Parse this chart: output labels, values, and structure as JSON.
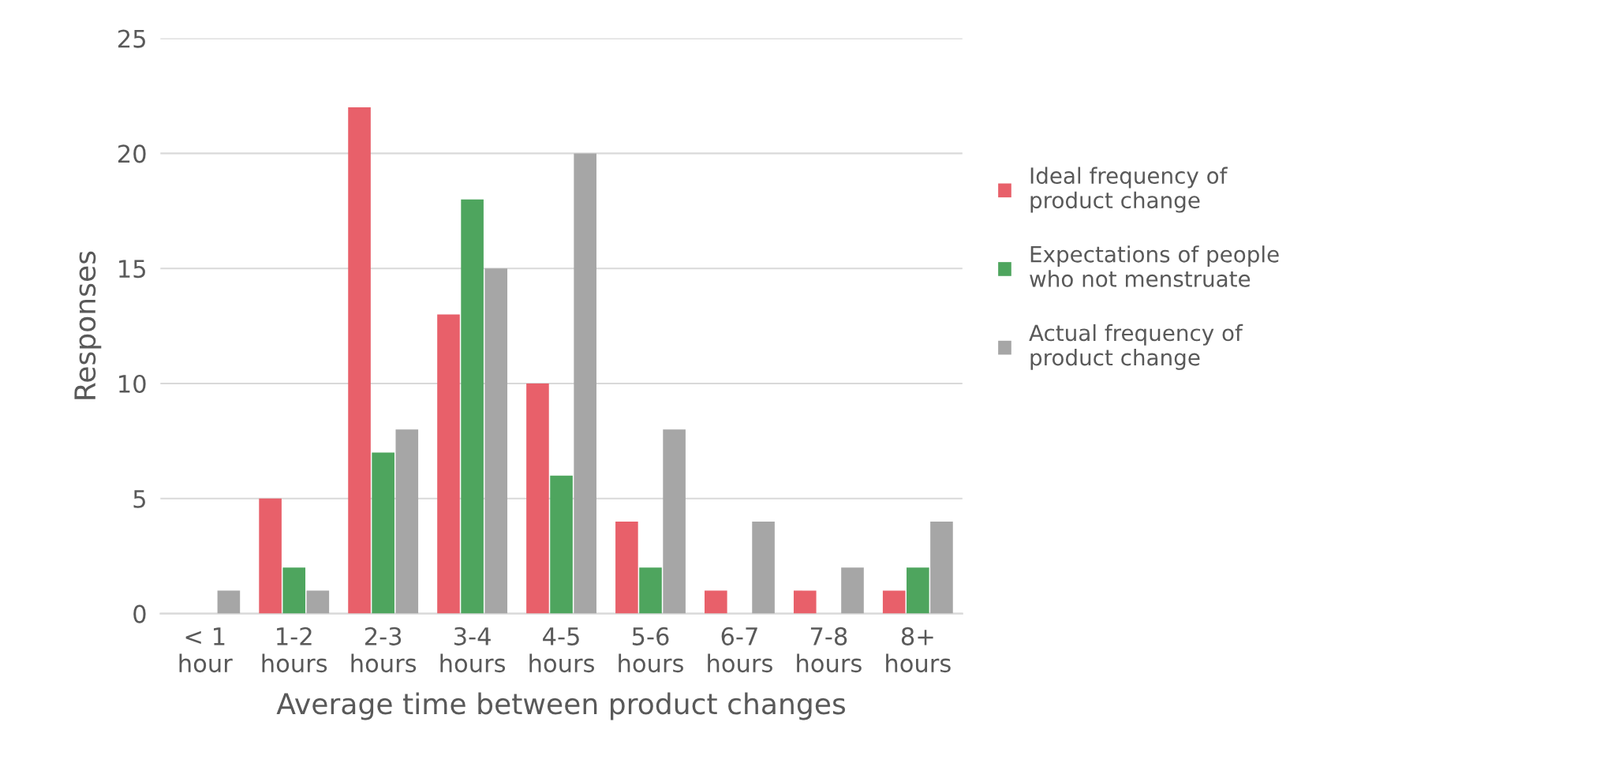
{
  "chart_data": {
    "type": "bar",
    "xlabel": "Average time between product changes",
    "ylabel": "Responses",
    "categories": [
      "< 1\nhour",
      "1-2\nhours",
      "2-3\nhours",
      "3-4\nhours",
      "4-5\nhours",
      "5-6\nhours",
      "6-7\nhours",
      "7-8\nhours",
      "8+\nhours"
    ],
    "series": [
      {
        "name": "Ideal frequency of\nproduct change",
        "color": "#e8606a",
        "values": [
          0,
          5,
          22,
          13,
          10,
          4,
          1,
          1,
          1
        ]
      },
      {
        "name": "Expectations of people\nwho not menstruate",
        "color": "#4ea55e",
        "values": [
          0,
          2,
          7,
          18,
          6,
          2,
          0,
          0,
          2
        ]
      },
      {
        "name": "Actual frequency of\nproduct change",
        "color": "#a6a6a6",
        "values": [
          1,
          1,
          8,
          15,
          20,
          8,
          4,
          2,
          4
        ]
      }
    ],
    "ylim": [
      0,
      25
    ],
    "yticks": [
      0,
      5,
      10,
      15,
      20,
      25
    ],
    "grid": "y",
    "legend": "right"
  }
}
